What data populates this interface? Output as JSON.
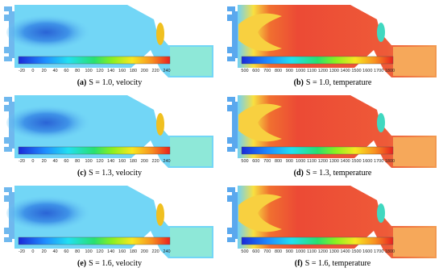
{
  "panels": [
    {
      "label": "(a)",
      "caption": "S = 1.0, velocity",
      "kind": "velocity",
      "ticks": [
        -20,
        0,
        20,
        40,
        60,
        80,
        100,
        120,
        140,
        160,
        180,
        200,
        220,
        240
      ]
    },
    {
      "label": "(b)",
      "caption": "S = 1.0, temperature",
      "kind": "temperature",
      "ticks": [
        500,
        600,
        700,
        800,
        900,
        1000,
        1100,
        1200,
        1300,
        1400,
        1500,
        1600,
        1700,
        1800
      ]
    },
    {
      "label": "(c)",
      "caption": "S = 1.3, velocity",
      "kind": "velocity",
      "ticks": [
        -20,
        0,
        20,
        40,
        60,
        80,
        100,
        120,
        140,
        160,
        180,
        200,
        220,
        240
      ]
    },
    {
      "label": "(d)",
      "caption": "S = 1.3, temperature",
      "kind": "temperature",
      "ticks": [
        500,
        600,
        700,
        800,
        900,
        1000,
        1100,
        1200,
        1300,
        1400,
        1500,
        1600,
        1700,
        1800
      ]
    },
    {
      "label": "(e)",
      "caption": "S = 1.6, velocity",
      "kind": "velocity",
      "ticks": [
        -20,
        0,
        20,
        40,
        60,
        80,
        100,
        120,
        140,
        160,
        180,
        200,
        220,
        240
      ]
    },
    {
      "label": "(f)",
      "caption": "S = 1.6, temperature",
      "kind": "temperature",
      "ticks": [
        500,
        600,
        700,
        800,
        900,
        1000,
        1100,
        1200,
        1300,
        1400,
        1500,
        1600,
        1700,
        1800
      ]
    }
  ]
}
